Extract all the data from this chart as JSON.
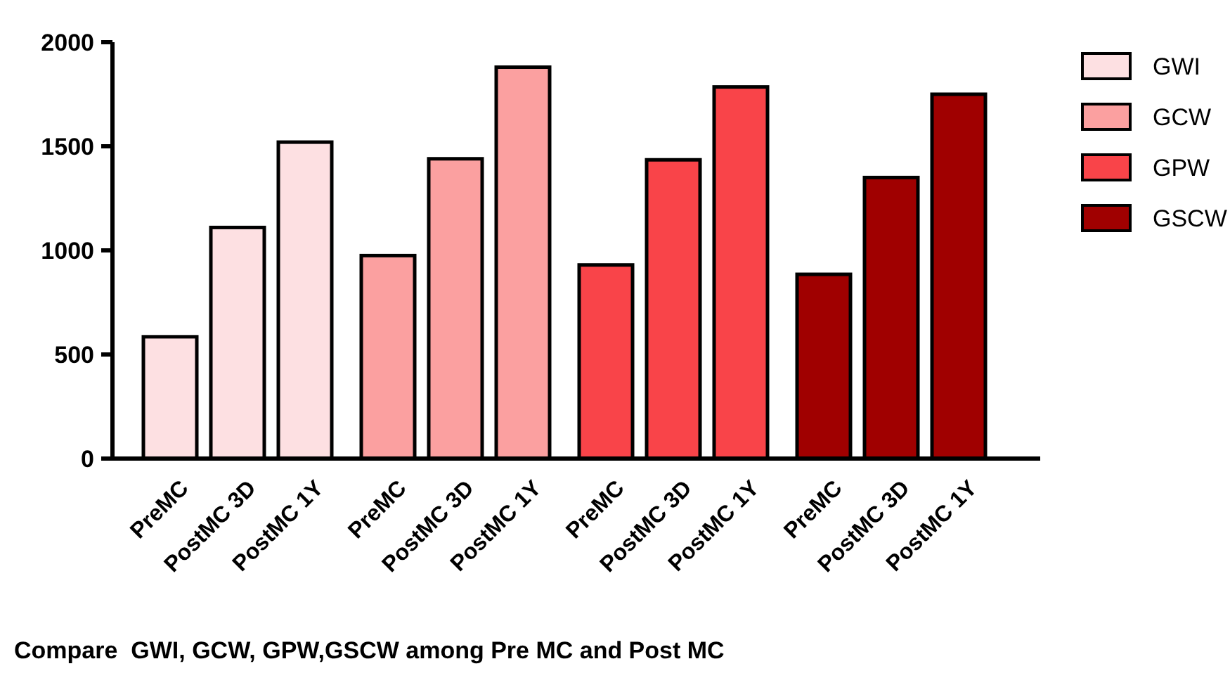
{
  "chart_data": {
    "type": "bar",
    "title": "Compare  GWI, GCW, GPW,GSCW among Pre MC and Post MC",
    "categories": [
      "PreMC",
      "PostMC 3D",
      "PostMC 1Y",
      "PreMC",
      "PostMC 3D",
      "PostMC 1Y",
      "PreMC",
      "PostMC 3D",
      "PostMC 1Y",
      "PreMC",
      "PostMC 3D",
      "PostMC 1Y"
    ],
    "series": [
      {
        "name": "GWI",
        "color": "#fde0e2",
        "values": [
          585,
          1110,
          1520,
          null,
          null,
          null,
          null,
          null,
          null,
          null,
          null,
          null
        ]
      },
      {
        "name": "GCW",
        "color": "#fba0a0",
        "values": [
          null,
          null,
          null,
          975,
          1440,
          1880,
          null,
          null,
          null,
          null,
          null,
          null
        ]
      },
      {
        "name": "GPW",
        "color": "#f94449",
        "values": [
          null,
          null,
          null,
          null,
          null,
          null,
          930,
          1435,
          1785,
          null,
          null,
          null
        ]
      },
      {
        "name": "GSCW",
        "color": "#a00000",
        "values": [
          null,
          null,
          null,
          null,
          null,
          null,
          null,
          null,
          null,
          885,
          1350,
          1750
        ]
      }
    ],
    "ylim": [
      0,
      2000
    ],
    "yticks": [
      0,
      500,
      1000,
      1500,
      2000
    ],
    "grid": false,
    "legend": "top right"
  }
}
